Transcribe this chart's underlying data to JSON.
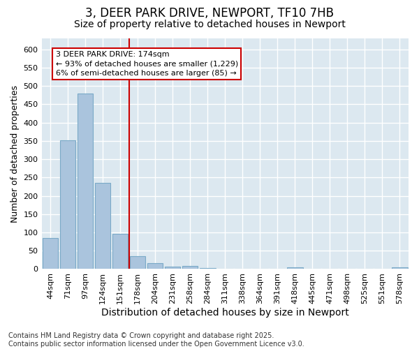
{
  "title": "3, DEER PARK DRIVE, NEWPORT, TF10 7HB",
  "subtitle": "Size of property relative to detached houses in Newport",
  "xlabel": "Distribution of detached houses by size in Newport",
  "ylabel": "Number of detached properties",
  "footer_line1": "Contains HM Land Registry data © Crown copyright and database right 2025.",
  "footer_line2": "Contains public sector information licensed under the Open Government Licence v3.0.",
  "categories": [
    "44sqm",
    "71sqm",
    "97sqm",
    "124sqm",
    "151sqm",
    "178sqm",
    "204sqm",
    "231sqm",
    "258sqm",
    "284sqm",
    "311sqm",
    "338sqm",
    "364sqm",
    "391sqm",
    "418sqm",
    "445sqm",
    "471sqm",
    "498sqm",
    "525sqm",
    "551sqm",
    "578sqm"
  ],
  "values": [
    85,
    352,
    480,
    236,
    97,
    35,
    17,
    7,
    8,
    3,
    0,
    0,
    0,
    0,
    5,
    0,
    0,
    0,
    0,
    0,
    4
  ],
  "bar_color": "#aac4dd",
  "bar_edge_color": "#7aaac8",
  "background_color": "#dce8f0",
  "grid_color": "#ffffff",
  "fig_background": "#ffffff",
  "vline_index": 5,
  "vline_color": "#cc0000",
  "annotation_text": "3 DEER PARK DRIVE: 174sqm\n← 93% of detached houses are smaller (1,229)\n6% of semi-detached houses are larger (85) →",
  "annotation_box_color": "#cc0000",
  "ylim": [
    0,
    630
  ],
  "yticks": [
    0,
    50,
    100,
    150,
    200,
    250,
    300,
    350,
    400,
    450,
    500,
    550,
    600
  ],
  "title_fontsize": 12,
  "subtitle_fontsize": 10,
  "annotation_fontsize": 8,
  "tick_fontsize": 8,
  "ylabel_fontsize": 9,
  "xlabel_fontsize": 10,
  "footer_fontsize": 7
}
